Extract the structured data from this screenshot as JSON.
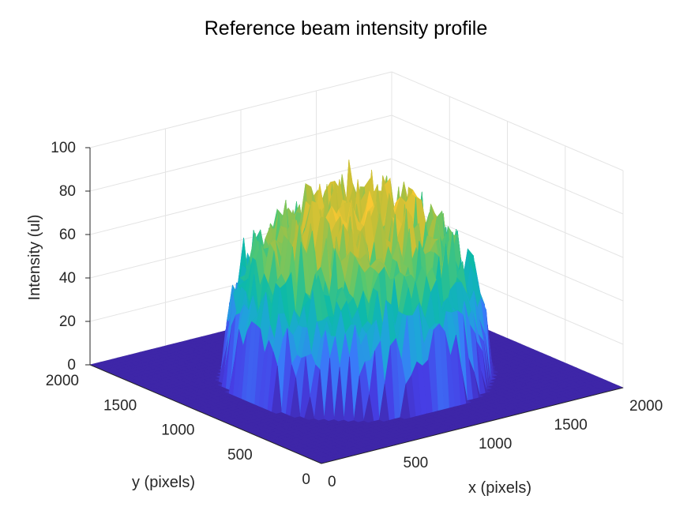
{
  "chart_data": {
    "type": "surface",
    "title": "Reference beam intensity profile",
    "xlabel": "x (pixels)",
    "ylabel": "y (pixels)",
    "zlabel": "Intensity (ul)",
    "xlim": [
      0,
      2000
    ],
    "ylim": [
      0,
      2000
    ],
    "zlim": [
      0,
      100
    ],
    "x_ticks": [
      "0",
      "500",
      "1000",
      "1500",
      "2000"
    ],
    "y_ticks": [
      "0",
      "500",
      "1000",
      "1500",
      "2000"
    ],
    "z_ticks": [
      "0",
      "20",
      "40",
      "60",
      "80",
      "100"
    ],
    "grid": true,
    "colormap": "parula",
    "beam_center": [
      1000,
      1000
    ],
    "beam_radius": 700,
    "peak_intensity": 92,
    "background_intensity": 0
  },
  "colors": {
    "background": "#ffffff",
    "axis": "#262626",
    "grid": "#e4e4e4",
    "colormap_low": "#3e26a8",
    "colormap_high": "#f9fb0e"
  }
}
